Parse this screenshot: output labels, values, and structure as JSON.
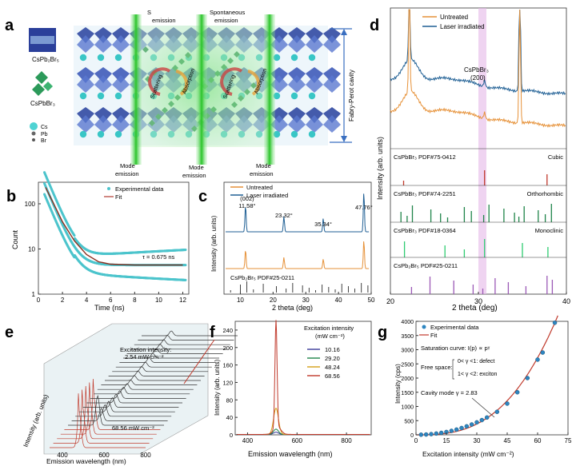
{
  "panels": {
    "a": "a",
    "b": "b",
    "c": "c",
    "d": "d",
    "e": "e",
    "f": "f",
    "g": "g"
  },
  "panel_a": {
    "legend_crystal1": "CsPb₂Br₅",
    "legend_crystal2": "CsPbBr₃",
    "legend_cs": "Cs",
    "legend_pb": "Pb",
    "legend_br": "Br",
    "spont1": "Spontaneous\nemission",
    "spont2": "Spontaneous\nemission",
    "mode1": "Mode\nemission",
    "mode2": "Mode\nemission",
    "mode3": "Mode\nemission",
    "scattering": "Scattering",
    "absorption": "Absorption",
    "cavity": "Fabry-Perot cavity"
  },
  "chart_data": [
    {
      "id": "b",
      "type": "scatter",
      "xlabel": "Time (ns)",
      "ylabel": "Count",
      "xlim": [
        0,
        12.5
      ],
      "ylim": [
        1,
        300
      ],
      "yscale": "log",
      "xticks": [
        0,
        2,
        4,
        6,
        8,
        10,
        12
      ],
      "yticks": [
        1,
        10,
        100
      ],
      "legend": [
        "Experimental data",
        "Fit"
      ],
      "annotation": "τ = 0.675 ns",
      "series": [
        {
          "name": "Fit",
          "x": [
            0.6,
            1.0,
            1.5,
            2,
            3,
            4,
            5,
            6,
            8,
            12
          ],
          "y": [
            230,
            140,
            75,
            40,
            15,
            7.5,
            5.2,
            4.6,
            4.4,
            4.4
          ]
        }
      ]
    },
    {
      "id": "c",
      "type": "line",
      "xlabel": "2 theta (deg)",
      "ylabel": "Intensity (arb. units)",
      "xlim": [
        5,
        50
      ],
      "xticks": [
        10,
        20,
        30,
        40,
        50
      ],
      "legend": [
        "Untreated",
        "Laser irradiated"
      ],
      "peak_labels": [
        "(002)\n11.58°",
        "23.32°",
        "35.34°",
        "47.76°"
      ],
      "peak_positions": [
        11.58,
        23.32,
        35.34,
        47.76
      ],
      "reference": "CsPb₂Br₅ PDF#25-0211"
    },
    {
      "id": "d",
      "type": "line",
      "xlabel": "2 theta (deg)",
      "ylabel": "Intensity (arb. units)",
      "xlim": [
        20,
        40
      ],
      "xticks": [
        20,
        30,
        40
      ],
      "legend": [
        "Untreated",
        "Laser irradiated"
      ],
      "highlight": "CsPbBr₃\n(200)",
      "references": [
        {
          "label": "CsPbBr₃ PDF#75-0412",
          "phase": "Cubic",
          "color": "#c0392b",
          "peaks": [
            21.5,
            30.7,
            37.8
          ]
        },
        {
          "label": "CsPbBr₃ PDF#74-2251",
          "phase": "Orthorhombic",
          "color": "#1e8449",
          "peaks": [
            21.2,
            21.9,
            22.5,
            24.6,
            25.7,
            26.5,
            28.4,
            29.2,
            30.6,
            31.2,
            32.9,
            34.1,
            34.6,
            35.2,
            36.8,
            37.6,
            38.3
          ]
        },
        {
          "label": "CsPbBr₃ PDF#18-0364",
          "phase": "Monoclinic",
          "color": "#2ecc71",
          "peaks": [
            21.6,
            26.2,
            28.4,
            30.7,
            35.0,
            37.9
          ]
        },
        {
          "label": "CsPb₂Br₅ PDF#25-0211",
          "phase": "",
          "color": "#9b59b6",
          "peaks": [
            22.4,
            24.5,
            27.2,
            29.4,
            30.5,
            31.9,
            33.4,
            35.4,
            37.8,
            38.4
          ]
        }
      ]
    },
    {
      "id": "e",
      "type": "line",
      "xlabel": "Emission wavelength (nm)",
      "ylabel": "Intensity (arb. units)",
      "xticks": [
        400,
        600,
        800
      ],
      "annotation_top": "Excitation intensity:\n2.54 mW cm⁻²",
      "annotation_bottom": "68.56 mW cm⁻²"
    },
    {
      "id": "f",
      "type": "line",
      "xlabel": "Emission wavelength (nm)",
      "ylabel": "Intensity (arb. units)",
      "xlim": [
        350,
        900
      ],
      "ylim": [
        0,
        260
      ],
      "xticks": [
        400,
        600,
        800
      ],
      "yticks": [
        0,
        40,
        80,
        120,
        160,
        200,
        240
      ],
      "legend_title": "Excitation intensity\n(mW cm⁻²)",
      "series": [
        {
          "name": "10.16",
          "peak": 5,
          "color": "#3b3b9a"
        },
        {
          "name": "29.20",
          "peak": 12,
          "color": "#1e8449"
        },
        {
          "name": "48.24",
          "peak": 60,
          "color": "#d4a017"
        },
        {
          "name": "68.56",
          "peak": 245,
          "color": "#c0392b"
        }
      ]
    },
    {
      "id": "g",
      "type": "scatter",
      "xlabel": "Excitation intensity (mW cm⁻²)",
      "ylabel": "Intensity (cps)",
      "xlim": [
        0,
        75
      ],
      "ylim": [
        0,
        4000
      ],
      "xticks": [
        0,
        15,
        30,
        45,
        60,
        75
      ],
      "yticks": [
        0,
        500,
        1000,
        1500,
        2000,
        2500,
        3000,
        3500,
        4000
      ],
      "legend": [
        "Experimental data",
        "Fit"
      ],
      "annotations": [
        "Saturation curve: I(p) ∝ pᵞ",
        "Free space:",
        "0< γ <1: defect",
        "1< γ <2: exciton",
        "Cavity mode γ = 2.83"
      ],
      "x": [
        2.5,
        5,
        7.5,
        10,
        12.5,
        15,
        17.5,
        20,
        22.5,
        25,
        27.5,
        30,
        32.5,
        35,
        40,
        45,
        50,
        55,
        60,
        62.5,
        68.5
      ],
      "y": [
        5,
        12,
        25,
        45,
        70,
        100,
        140,
        185,
        240,
        300,
        365,
        440,
        520,
        610,
        810,
        1100,
        1500,
        2000,
        2650,
        2900,
        3950
      ]
    }
  ]
}
